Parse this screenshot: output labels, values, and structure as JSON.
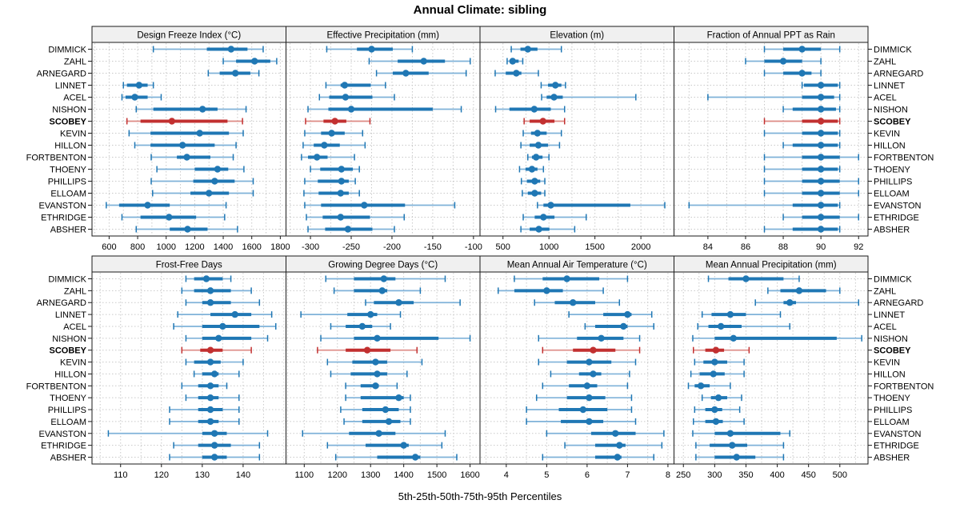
{
  "title": "Annual Climate: sibling",
  "caption": "5th-25th-50th-75th-95th Percentiles",
  "colors": {
    "series_blue": "#1f77b4",
    "series_blue_light": "#7fb2d9",
    "highlight_red": "#c23030",
    "highlight_red_light": "#dd8a84",
    "strip_bg": "#f0f0f0",
    "panel_border": "#1a1a1a",
    "grid": "#c9c9c9",
    "text": "#000000"
  },
  "chart_data": {
    "type": "trellis-percentile-dotplot",
    "layout": {
      "rows": 2,
      "cols": 4,
      "legend": "none",
      "grid": "dotted"
    },
    "percentiles": [
      5,
      25,
      50,
      75,
      95
    ],
    "stations": [
      "DIMMICK",
      "ZAHL",
      "ARNEGARD",
      "LINNET",
      "ACEL",
      "NISHON",
      "SCOBEY",
      "KEVIN",
      "HILLON",
      "FORTBENTON",
      "THOENY",
      "PHILLIPS",
      "ELLOAM",
      "EVANSTON",
      "ETHRIDGE",
      "ABSHER"
    ],
    "highlighted_station": "SCOBEY",
    "panels": [
      {
        "title": "Design Freeze Index (°C)",
        "ticks": [
          600,
          800,
          1000,
          1200,
          1400,
          1600,
          1800
        ],
        "range": [
          480,
          1840
        ],
        "grid_step": 100,
        "values": [
          [
            910,
            1285,
            1455,
            1570,
            1680
          ],
          [
            1400,
            1490,
            1620,
            1730,
            1775
          ],
          [
            1295,
            1375,
            1485,
            1590,
            1650
          ],
          [
            700,
            725,
            810,
            870,
            910
          ],
          [
            690,
            715,
            780,
            870,
            965
          ],
          [
            790,
            910,
            1255,
            1360,
            1560
          ],
          [
            725,
            820,
            1040,
            1430,
            1535
          ],
          [
            740,
            890,
            1235,
            1440,
            1540
          ],
          [
            780,
            890,
            1115,
            1340,
            1490
          ],
          [
            895,
            1075,
            1145,
            1310,
            1470
          ],
          [
            935,
            1200,
            1360,
            1435,
            1545
          ],
          [
            895,
            1190,
            1340,
            1480,
            1610
          ],
          [
            905,
            1170,
            1300,
            1440,
            1610
          ],
          [
            580,
            670,
            870,
            1025,
            1420
          ],
          [
            690,
            820,
            1020,
            1210,
            1410
          ],
          [
            790,
            1025,
            1150,
            1290,
            1500
          ]
        ]
      },
      {
        "title": "Effective Precipitation (mm)",
        "ticks": [
          -300,
          -250,
          -200,
          -150,
          -100
        ],
        "range": [
          -330,
          -92
        ],
        "grid_step": 25,
        "values": [
          [
            -280,
            -243,
            -225,
            -199,
            -175
          ],
          [
            -228,
            -193,
            -161,
            -135,
            -104
          ],
          [
            -219,
            -199,
            -183,
            -155,
            -109
          ],
          [
            -281,
            -263,
            -258,
            -226,
            -208
          ],
          [
            -289,
            -277,
            -257,
            -224,
            -197
          ],
          [
            -303,
            -278,
            -250,
            -150,
            -115
          ],
          [
            -306,
            -284,
            -270,
            -256,
            -227
          ],
          [
            -307,
            -287,
            -274,
            -258,
            -236
          ],
          [
            -309,
            -296,
            -283,
            -264,
            -233
          ],
          [
            -311,
            -303,
            -292,
            -279,
            -246
          ],
          [
            -300,
            -288,
            -262,
            -248,
            -240
          ],
          [
            -307,
            -291,
            -262,
            -253,
            -245
          ],
          [
            -308,
            -290,
            -263,
            -253,
            -240
          ],
          [
            -307,
            -287,
            -234,
            -184,
            -123
          ],
          [
            -305,
            -285,
            -263,
            -227,
            -185
          ],
          [
            -303,
            -282,
            -254,
            -224,
            -197
          ]
        ]
      },
      {
        "title": "Elevation (m)",
        "ticks": [
          500,
          1000,
          1500,
          2000
        ],
        "range": [
          250,
          2360
        ],
        "grid_step": 250,
        "values": [
          [
            590,
            690,
            770,
            875,
            1135
          ],
          [
            545,
            575,
            605,
            670,
            715
          ],
          [
            415,
            530,
            645,
            700,
            885
          ],
          [
            915,
            990,
            1070,
            1135,
            1180
          ],
          [
            920,
            975,
            1055,
            1150,
            1945
          ],
          [
            420,
            570,
            840,
            1020,
            1170
          ],
          [
            730,
            790,
            935,
            1060,
            1170
          ],
          [
            720,
            805,
            875,
            975,
            1135
          ],
          [
            695,
            790,
            885,
            990,
            1115
          ],
          [
            770,
            815,
            860,
            930,
            1000
          ],
          [
            680,
            745,
            815,
            875,
            940
          ],
          [
            700,
            760,
            845,
            905,
            955
          ],
          [
            710,
            770,
            845,
            915,
            955
          ],
          [
            875,
            940,
            1020,
            1885,
            2260
          ],
          [
            720,
            845,
            940,
            1060,
            1405
          ],
          [
            695,
            790,
            890,
            1005,
            1280
          ]
        ]
      },
      {
        "title": "Fraction of Annual PPT as Rain",
        "ticks": [
          84,
          86,
          88,
          90,
          92
        ],
        "range": [
          82.2,
          92.5
        ],
        "grid_step": 1,
        "values": [
          [
            87,
            88,
            89,
            90,
            91
          ],
          [
            86,
            87,
            88,
            89,
            90
          ],
          [
            87,
            88,
            89,
            89.5,
            90
          ],
          [
            89,
            89.1,
            90,
            90.9,
            91
          ],
          [
            84,
            89,
            90,
            90.7,
            91
          ],
          [
            88,
            88.5,
            90,
            90.8,
            91
          ],
          [
            87,
            89,
            90,
            90.9,
            91
          ],
          [
            87,
            89,
            90,
            90.9,
            91
          ],
          [
            88,
            88.5,
            90,
            90.9,
            91
          ],
          [
            87,
            89,
            90,
            91,
            92
          ],
          [
            87,
            89,
            90,
            90.9,
            91
          ],
          [
            87,
            89,
            90,
            91,
            92
          ],
          [
            87,
            89,
            90,
            91,
            92
          ],
          [
            83,
            88.5,
            90,
            90.9,
            91
          ],
          [
            88,
            89,
            90,
            91,
            92
          ],
          [
            87,
            88.5,
            90,
            90.9,
            91
          ]
        ]
      },
      {
        "title": "Frost-Free Days",
        "ticks": [
          110,
          120,
          130,
          140
        ],
        "range": [
          103,
          150.5
        ],
        "grid_step": 5,
        "values": [
          [
            126,
            128,
            131,
            135,
            137
          ],
          [
            125,
            128,
            132,
            137,
            142
          ],
          [
            126,
            130,
            132,
            137,
            144
          ],
          [
            124,
            132,
            138,
            142,
            147
          ],
          [
            123,
            130,
            135,
            144,
            148
          ],
          [
            126,
            130,
            134,
            142,
            146
          ],
          [
            125,
            129.5,
            132,
            135,
            142
          ],
          [
            126,
            128,
            132,
            134.5,
            140
          ],
          [
            128,
            130,
            133,
            134,
            139
          ],
          [
            125,
            129,
            132,
            134,
            136
          ],
          [
            126,
            129,
            132,
            134,
            139
          ],
          [
            122,
            129,
            132,
            135,
            139
          ],
          [
            122,
            129,
            132,
            134,
            139
          ],
          [
            107,
            130,
            133,
            136,
            146
          ],
          [
            123,
            129,
            133,
            137,
            144
          ],
          [
            122,
            130,
            133,
            136,
            144
          ]
        ]
      },
      {
        "title": "Growing Degree Days (°C)",
        "ticks": [
          1100,
          1200,
          1300,
          1400,
          1500,
          1600
        ],
        "range": [
          1045,
          1630
        ],
        "grid_step": 50,
        "values": [
          [
            1165,
            1250,
            1340,
            1375,
            1525
          ],
          [
            1190,
            1250,
            1335,
            1350,
            1450
          ],
          [
            1285,
            1310,
            1385,
            1430,
            1570
          ],
          [
            1090,
            1230,
            1300,
            1320,
            1390
          ],
          [
            1180,
            1225,
            1275,
            1305,
            1360
          ],
          [
            1150,
            1250,
            1320,
            1505,
            1600
          ],
          [
            1140,
            1225,
            1290,
            1360,
            1440
          ],
          [
            1170,
            1245,
            1315,
            1350,
            1455
          ],
          [
            1180,
            1240,
            1320,
            1350,
            1410
          ],
          [
            1225,
            1270,
            1315,
            1325,
            1380
          ],
          [
            1225,
            1270,
            1385,
            1400,
            1420
          ],
          [
            1210,
            1275,
            1345,
            1385,
            1420
          ],
          [
            1220,
            1275,
            1355,
            1390,
            1420
          ],
          [
            1095,
            1235,
            1325,
            1375,
            1525
          ],
          [
            1170,
            1285,
            1400,
            1415,
            1515
          ],
          [
            1195,
            1320,
            1435,
            1450,
            1560
          ]
        ]
      },
      {
        "title": "Mean Annual Air Temperature (°C)",
        "ticks": [
          4,
          5,
          6,
          7,
          8
        ],
        "range": [
          3.35,
          8.15
        ],
        "grid_step": 0.5,
        "values": [
          [
            4.2,
            4.9,
            5.5,
            6.3,
            7.0
          ],
          [
            3.8,
            4.2,
            5.0,
            5.4,
            6.4
          ],
          [
            4.7,
            5.2,
            5.65,
            6.2,
            6.8
          ],
          [
            5.55,
            6.4,
            7.0,
            7.1,
            7.6
          ],
          [
            5.95,
            6.2,
            6.9,
            7.0,
            7.65
          ],
          [
            4.8,
            5.75,
            6.35,
            6.9,
            7.3
          ],
          [
            4.9,
            5.65,
            6.15,
            6.7,
            7.3
          ],
          [
            4.8,
            5.5,
            6.05,
            6.6,
            7.2
          ],
          [
            5.1,
            5.8,
            6.15,
            6.35,
            7.05
          ],
          [
            4.9,
            5.55,
            6.0,
            6.25,
            7.0
          ],
          [
            4.75,
            5.5,
            6.05,
            6.45,
            7.1
          ],
          [
            4.5,
            5.3,
            5.9,
            6.5,
            7.1
          ],
          [
            4.5,
            5.35,
            6.05,
            6.4,
            7.2
          ],
          [
            5.0,
            6.1,
            6.7,
            7.2,
            7.9
          ],
          [
            5.45,
            6.2,
            6.8,
            6.95,
            7.85
          ],
          [
            4.9,
            6.2,
            6.75,
            6.85,
            7.65
          ]
        ]
      },
      {
        "title": "Mean Annual Precipitation (mm)",
        "ticks": [
          250,
          300,
          350,
          400,
          450,
          500
        ],
        "range": [
          235,
          545
        ],
        "grid_step": 25,
        "values": [
          [
            290,
            322,
            350,
            410,
            435
          ],
          [
            385,
            405,
            435,
            478,
            500
          ],
          [
            365,
            410,
            420,
            430,
            530
          ],
          [
            280,
            295,
            325,
            350,
            405
          ],
          [
            273,
            290,
            310,
            343,
            420
          ],
          [
            265,
            300,
            330,
            495,
            535
          ],
          [
            266,
            285,
            302,
            315,
            355
          ],
          [
            268,
            282,
            300,
            320,
            347
          ],
          [
            262,
            276,
            298,
            316,
            347
          ],
          [
            258,
            268,
            278,
            292,
            325
          ],
          [
            280,
            294,
            306,
            320,
            343
          ],
          [
            268,
            285,
            300,
            312,
            340
          ],
          [
            266,
            285,
            302,
            313,
            347
          ],
          [
            265,
            300,
            325,
            405,
            420
          ],
          [
            270,
            292,
            328,
            352,
            410
          ],
          [
            270,
            300,
            335,
            365,
            410
          ]
        ]
      }
    ]
  }
}
